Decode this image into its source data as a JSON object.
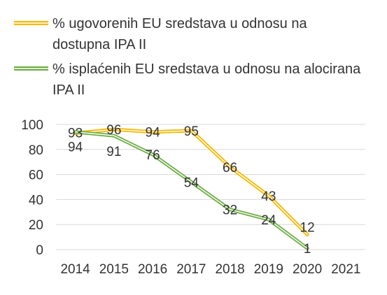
{
  "chart_data": {
    "type": "line",
    "categories": [
      "2014",
      "2015",
      "2016",
      "2017",
      "2018",
      "2019",
      "2020",
      "2021"
    ],
    "ylim": [
      0,
      100
    ],
    "yticks": [
      "0",
      "20",
      "40",
      "60",
      "80",
      "100"
    ],
    "grid": true,
    "legend_position": "top",
    "series": [
      {
        "name": "% ugovorenih EU sredstava u odnosu na dostupna IPA II",
        "legend_lines": [
          "% ugovorenih EU sredstava u odnosu na",
          "dostupna IPA II"
        ],
        "color": "#F5B800",
        "values": [
          93,
          96,
          94,
          95,
          66,
          43,
          12,
          null
        ]
      },
      {
        "name": "% isplaćenih EU sredstava u odnosu na alocirana IPA II",
        "legend_lines": [
          "% isplaćenih EU sredstava u odnosu na alocirana",
          "IPA II"
        ],
        "color": "#70AD47",
        "values": [
          94,
          91,
          76,
          54,
          32,
          24,
          1,
          null
        ]
      }
    ]
  }
}
